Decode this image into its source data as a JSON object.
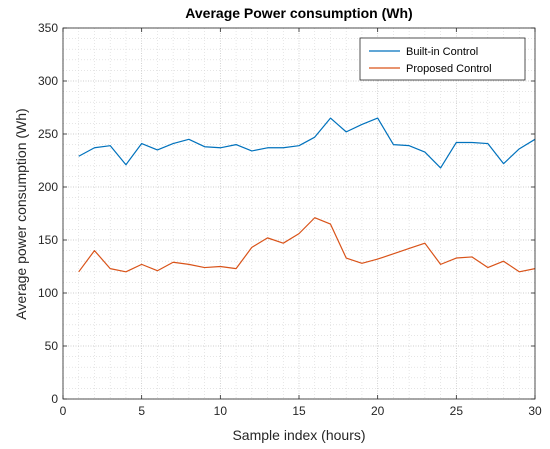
{
  "chart_data": {
    "type": "line",
    "title": "Average Power consumption (Wh)",
    "xlabel": "Sample index (hours)",
    "ylabel": "Average power consumption (Wh)",
    "xlim": [
      0,
      30
    ],
    "ylim": [
      0,
      350
    ],
    "xticks": [
      0,
      5,
      10,
      15,
      20,
      25,
      30
    ],
    "yticks": [
      0,
      50,
      100,
      150,
      200,
      250,
      300,
      350
    ],
    "grid": true,
    "minor_grid": true,
    "legend_position": "top-right",
    "x": [
      1,
      2,
      3,
      4,
      5,
      6,
      7,
      8,
      9,
      10,
      11,
      12,
      13,
      14,
      15,
      16,
      17,
      18,
      19,
      20,
      21,
      22,
      23,
      24,
      25,
      26,
      27,
      28,
      29,
      30
    ],
    "series": [
      {
        "name": "Built-in Control",
        "color": "#0072BD",
        "values": [
          229,
          237,
          239,
          221,
          241,
          235,
          241,
          245,
          238,
          237,
          240,
          234,
          237,
          237,
          239,
          247,
          265,
          252,
          259,
          265,
          240,
          239,
          233,
          218,
          242,
          242,
          241,
          222,
          236,
          245
        ]
      },
      {
        "name": "Proposed Control",
        "color": "#D95319",
        "values": [
          120,
          140,
          123,
          120,
          127,
          121,
          129,
          127,
          124,
          125,
          123,
          143,
          152,
          147,
          156,
          171,
          165,
          133,
          128,
          132,
          137,
          142,
          147,
          127,
          133,
          134,
          124,
          130,
          120,
          123
        ]
      }
    ]
  }
}
